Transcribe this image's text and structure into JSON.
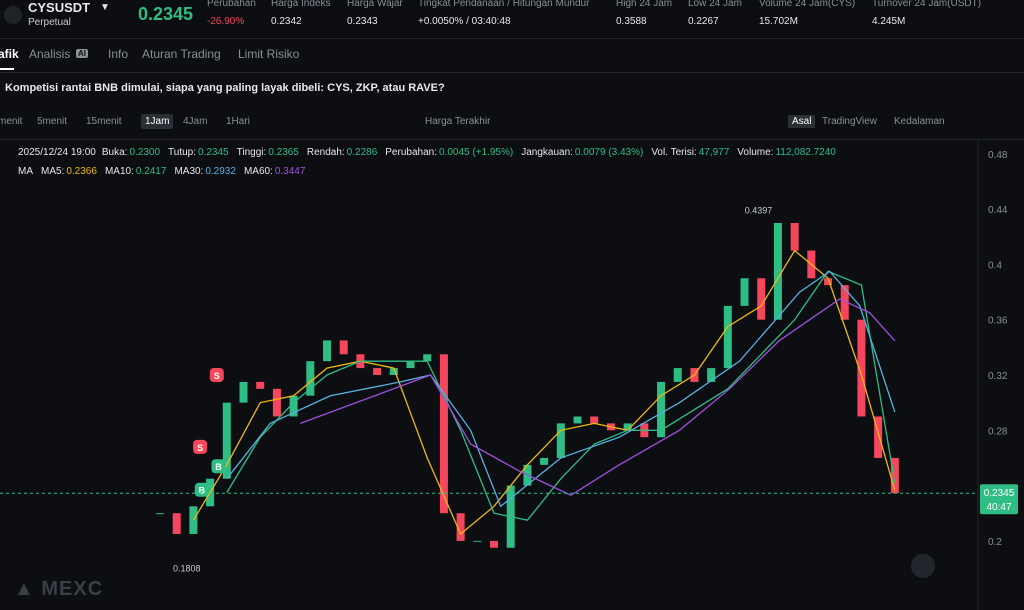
{
  "header": {
    "symbol": "CYSUSDT",
    "contract": "Perpetual",
    "price": "0.2345",
    "stats": [
      {
        "label": "Perubahan",
        "value": "-26.90%"
      },
      {
        "label": "Harga Indeks",
        "value": "0.2342"
      },
      {
        "label": "Harga Wajar",
        "value": "0.2343"
      },
      {
        "label": "Tingkat Pendanaan / Hitungan Mundur",
        "value": "+0.0050% / 03:40:48"
      },
      {
        "label": "High 24 Jam",
        "value": "0.3588"
      },
      {
        "label": "Low 24 Jam",
        "value": "0.2267"
      },
      {
        "label": "Volume 24 Jam(CYS)",
        "value": "15.702M"
      },
      {
        "label": "Turnover 24 Jam(USDT)",
        "value": "4.245M"
      }
    ]
  },
  "tabs": [
    "afik",
    "Analisis",
    "Info",
    "Aturan Trading",
    "Limit Risiko"
  ],
  "analysis_badge": "AI",
  "announcement": "Kompetisi rantai BNB dimulai, siapa yang paling layak dibeli: CYS, ZKP, atau RAVE?",
  "toolbar": {
    "intervals": [
      "menit",
      "5menit",
      "15menit",
      "1Jam",
      "4Jam",
      "1Hari"
    ],
    "price_source": "Harga Terakhir",
    "views": [
      "Asal",
      "TradingView",
      "Kedalaman"
    ]
  },
  "info_line": {
    "time": "2025/12/24 19:00",
    "items": [
      {
        "label": "Buka:",
        "value": "0.2300"
      },
      {
        "label": "Tutup:",
        "value": "0.2345"
      },
      {
        "label": "Tinggi:",
        "value": "0.2365"
      },
      {
        "label": "Rendah:",
        "value": "0.2286"
      },
      {
        "label": "Perubahan:",
        "value": "0.0045 (+1.95%)"
      },
      {
        "label": "Jangkauan:",
        "value": "0.0079 (3.43%)"
      },
      {
        "label": "Vol. Terisi:",
        "value": "47,977"
      },
      {
        "label": "Volume:",
        "value": "112,082.7240"
      }
    ]
  },
  "ma_line": {
    "title": "MA",
    "items": [
      {
        "label": "MA5:",
        "value": "0.2366"
      },
      {
        "label": "MA10:",
        "value": "0.2417"
      },
      {
        "label": "MA30:",
        "value": "0.2932"
      },
      {
        "label": "MA60:",
        "value": "0.3447"
      }
    ]
  },
  "watermark": "MEXC",
  "chart_data": {
    "type": "candlestick",
    "xlim": [
      -9.58,
      48.8
    ],
    "ylim": [
      0.15,
      0.49
    ],
    "yticks": [
      0.2,
      0.28,
      0.32,
      0.36,
      0.4,
      0.44,
      0.48
    ],
    "close": [
      0.22,
      0.205,
      0.225,
      0.245,
      0.3,
      0.315,
      0.31,
      0.29,
      0.305,
      0.33,
      0.345,
      0.335,
      0.325,
      0.32,
      0.325,
      0.33,
      0.335,
      0.22,
      0.2,
      0.2,
      0.195,
      0.24,
      0.255,
      0.26,
      0.285,
      0.29,
      0.285,
      0.28,
      0.285,
      0.275,
      0.315,
      0.325,
      0.315,
      0.325,
      0.37,
      0.39,
      0.36,
      0.43,
      0.41,
      0.39,
      0.385,
      0.36,
      0.29,
      0.26,
      0.2345
    ],
    "up_color": "#2ebd85",
    "down_color": "#f6465d",
    "series": [
      {
        "name": "MA5",
        "color": "#f0b90b",
        "x": [
          2,
          4,
          6,
          8,
          10,
          12,
          14,
          16,
          18,
          20,
          22,
          24,
          26,
          28,
          30,
          32,
          34,
          36,
          38,
          40,
          42,
          44
        ],
        "values": [
          0.215,
          0.255,
          0.3,
          0.305,
          0.325,
          0.33,
          0.325,
          0.26,
          0.205,
          0.225,
          0.255,
          0.28,
          0.285,
          0.28,
          0.305,
          0.32,
          0.355,
          0.37,
          0.41,
          0.39,
          0.32,
          0.2366
        ]
      },
      {
        "name": "MA10",
        "color": "#2ebd85",
        "x": [
          4,
          6,
          8,
          10,
          12,
          14,
          16,
          18,
          20,
          22,
          24,
          26,
          28,
          30,
          32,
          34,
          36,
          38,
          40,
          42,
          44
        ],
        "values": [
          0.235,
          0.275,
          0.3,
          0.32,
          0.33,
          0.33,
          0.33,
          0.28,
          0.22,
          0.215,
          0.245,
          0.27,
          0.28,
          0.28,
          0.295,
          0.31,
          0.335,
          0.36,
          0.395,
          0.385,
          0.2417
        ]
      },
      {
        "name": "MA30",
        "color": "#5ab0e0",
        "x": [
          4,
          6.6,
          10.2,
          14.4,
          16.2,
          18.6,
          20.4,
          24,
          27.5,
          31.1,
          34.7,
          38.3,
          40.1,
          41.9,
          44
        ],
        "values": [
          0.245,
          0.285,
          0.305,
          0.315,
          0.32,
          0.28,
          0.225,
          0.26,
          0.275,
          0.3,
          0.33,
          0.38,
          0.395,
          0.37,
          0.2932
        ]
      },
      {
        "name": "MA60",
        "color": "#a050e0",
        "x": [
          8.4,
          16.2,
          18.6,
          21.6,
          24.6,
          27.5,
          31.1,
          34.1,
          37.1,
          40.7,
          42.5,
          44
        ],
        "values": [
          0.285,
          0.32,
          0.27,
          0.25,
          0.233,
          0.255,
          0.28,
          0.31,
          0.345,
          0.375,
          0.365,
          0.3447
        ]
      }
    ],
    "markers": [
      {
        "label": "S",
        "x": 3.4,
        "y": 0.32
      },
      {
        "label": "S",
        "x": 2.4,
        "y": 0.268
      },
      {
        "label": "B",
        "x": 3.5,
        "y": 0.254
      },
      {
        "label": "B",
        "x": 2.5,
        "y": 0.237
      }
    ],
    "high": {
      "value": 0.4397,
      "x": 36.9
    },
    "low": {
      "value": 0.1808,
      "x": 0.3
    },
    "last_price": 0.2345,
    "countdown": "40:47"
  }
}
